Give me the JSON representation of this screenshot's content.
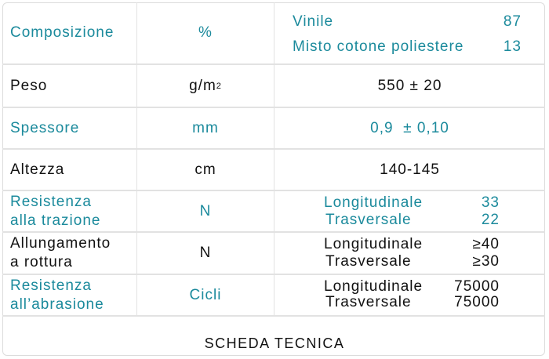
{
  "colors": {
    "accent": "#1b8a9c",
    "text": "#111111"
  },
  "rows": [
    {
      "label": "Composizione",
      "unit": "%",
      "items": [
        {
          "name": "Vinile",
          "value": "87"
        },
        {
          "name": "Misto cotone poliestere",
          "value": "13"
        }
      ]
    },
    {
      "label": "Peso",
      "unit": "g/m",
      "unit_sup": "2",
      "value": "550 ± 20"
    },
    {
      "label": "Spessore",
      "unit": "mm",
      "value": "0,9  ± 0,10"
    },
    {
      "label": "Altezza",
      "unit": "cm",
      "value": "140-145"
    },
    {
      "label_line1": "Resistenza",
      "label_line2": "alla trazione",
      "unit": "N",
      "items": [
        {
          "name": "Longitudinale",
          "value": "33"
        },
        {
          "name": "Trasversale",
          "value": "22"
        }
      ]
    },
    {
      "label_line1": "Allungamento",
      "label_line2": "a rottura",
      "unit": "N",
      "items": [
        {
          "name": "Longitudinale",
          "value": "≥40"
        },
        {
          "name": "Trasversale",
          "value": "≥30"
        }
      ]
    },
    {
      "label_line1": "Resistenza",
      "label_line2": "all’abrasione",
      "unit": "Cicli",
      "items": [
        {
          "name": "Longitudinale",
          "value": "75000"
        },
        {
          "name": "Trasversale",
          "value": "75000"
        }
      ]
    }
  ],
  "caption": "SCHEDA TECNICA"
}
